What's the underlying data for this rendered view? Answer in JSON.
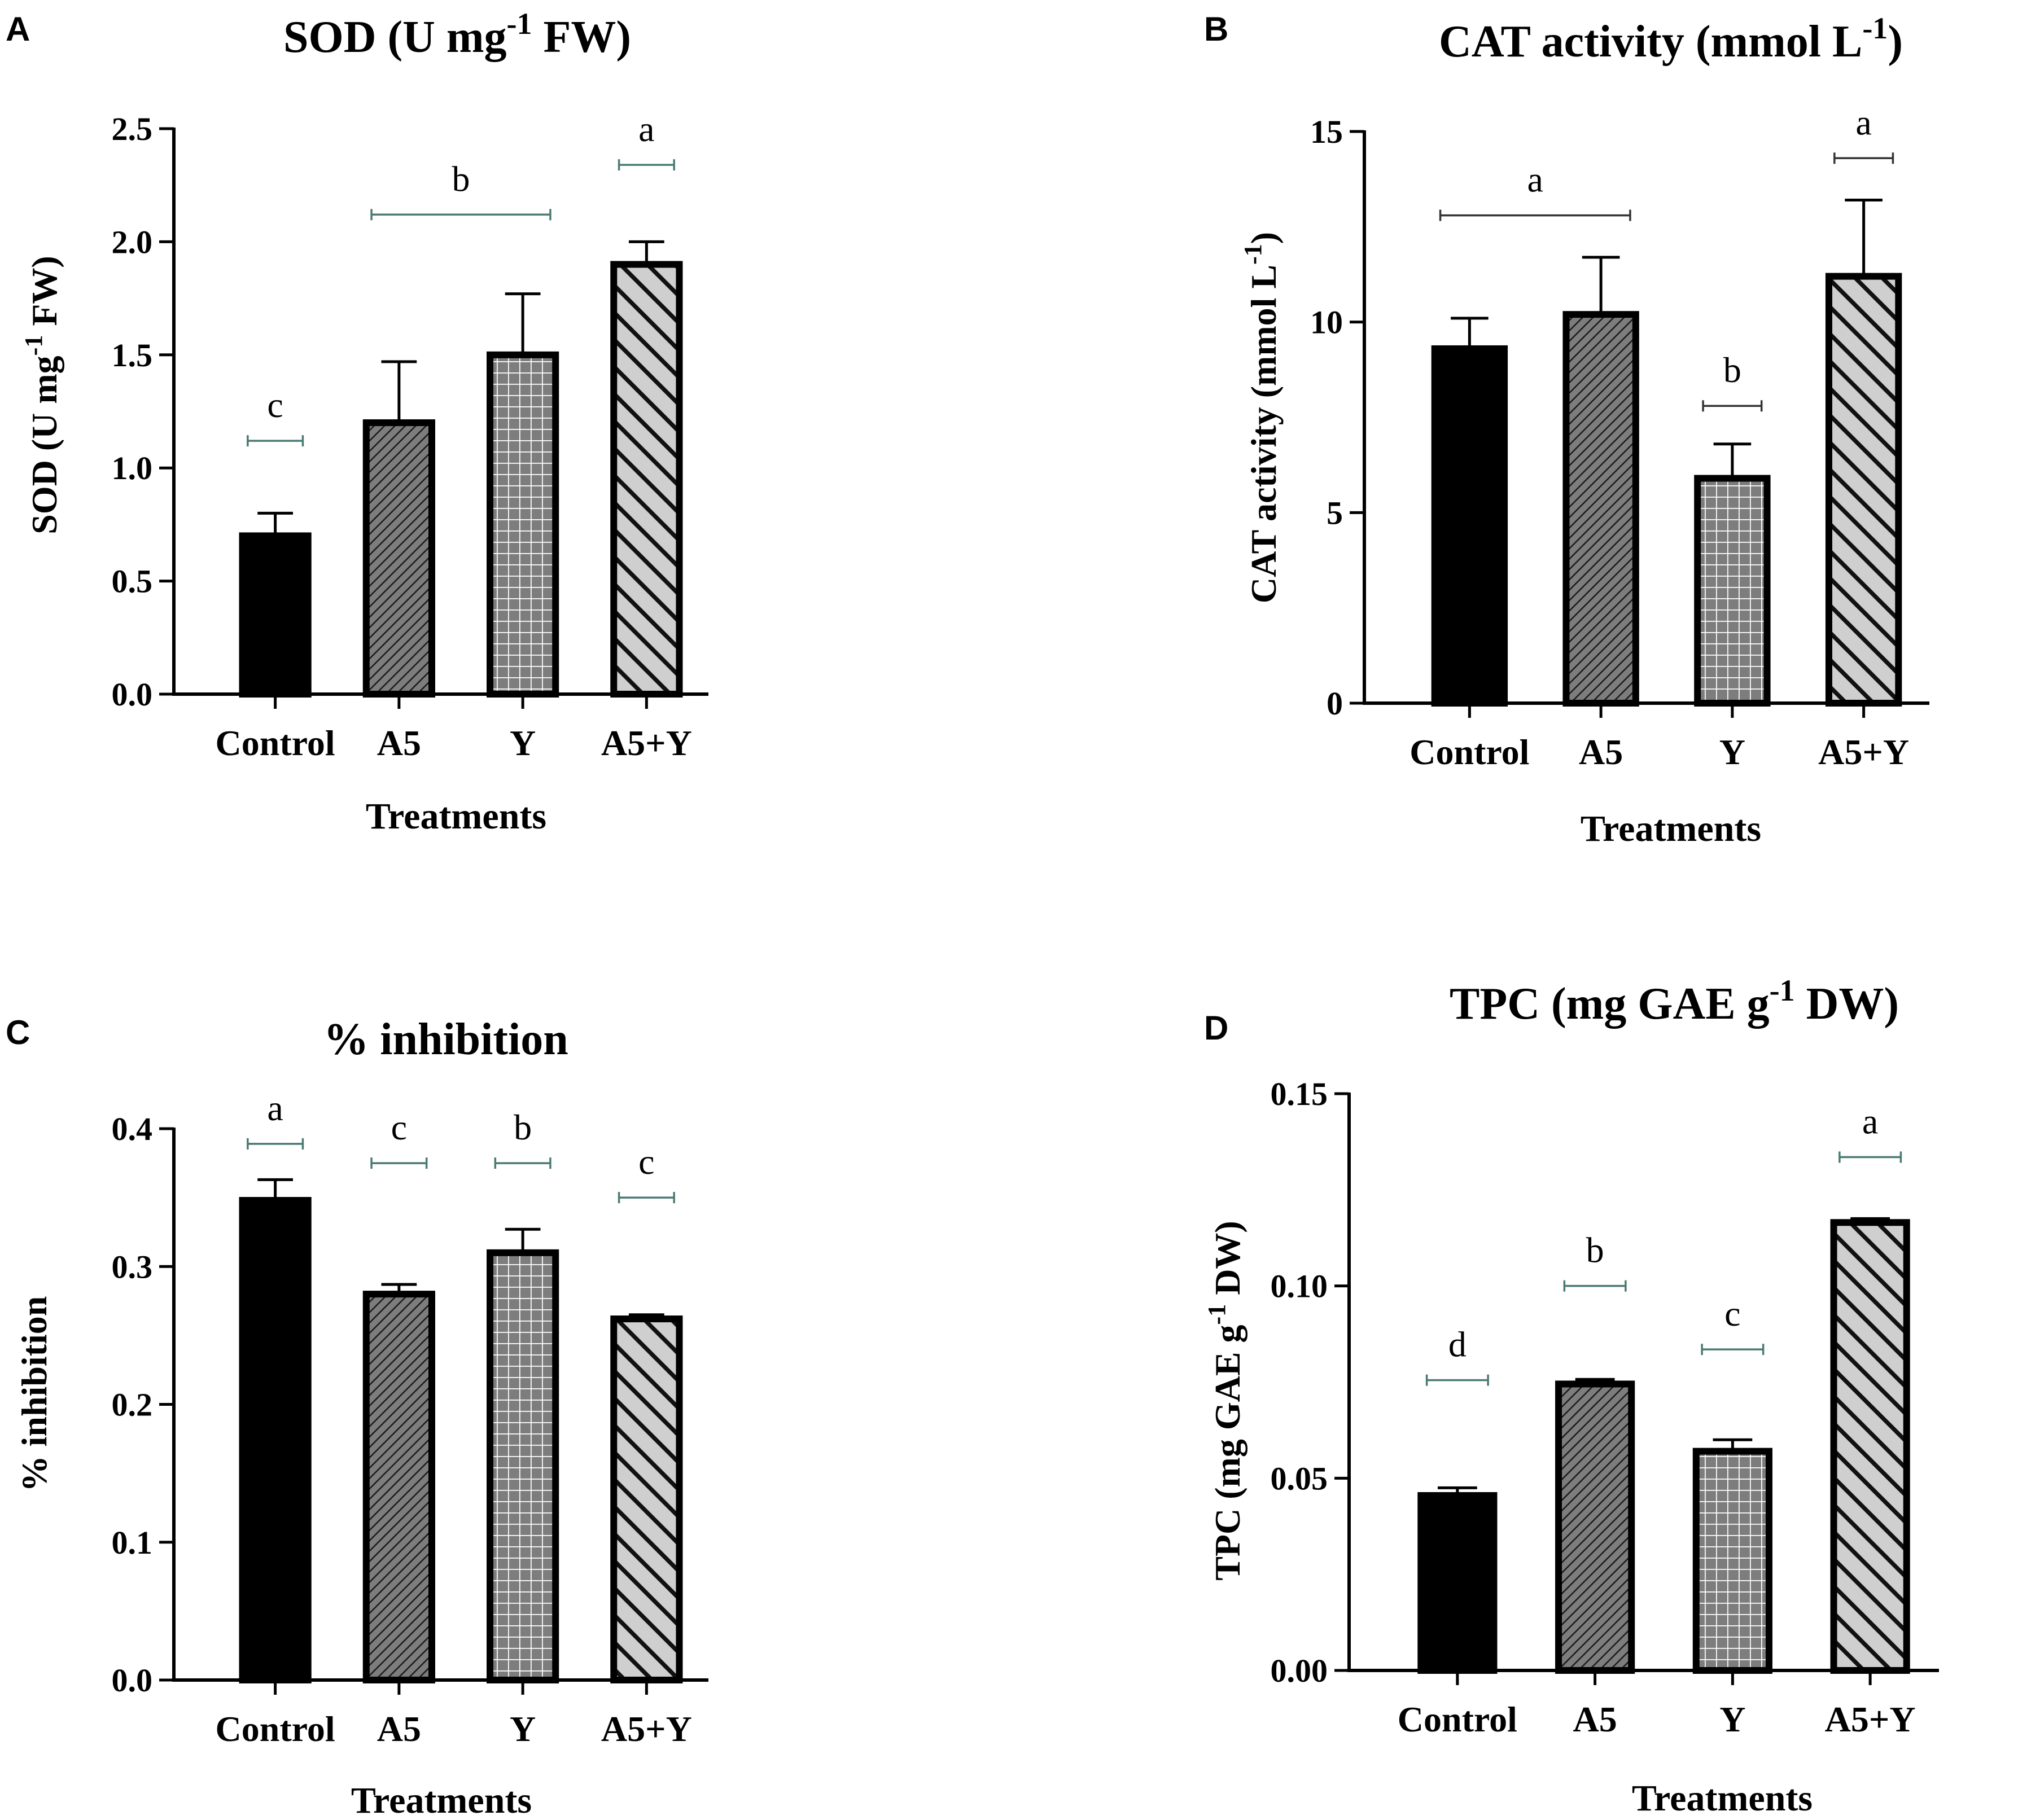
{
  "chart_data": [
    {
      "id": "A",
      "panel_label": "A",
      "type": "bar",
      "title": "SOD  (U mg",
      "title_sup": "-1",
      "title_tail": " FW)",
      "ylabel": "SOD  (U mg",
      "ylabel_sup": "-1",
      "ylabel_tail": " FW)",
      "xlabel": "Treatments",
      "categories": [
        "Control",
        "A5",
        "Y",
        "A5+Y"
      ],
      "values": [
        0.7,
        1.2,
        1.5,
        1.9
      ],
      "errors": [
        0.1,
        0.27,
        0.27,
        0.1
      ],
      "patterns": [
        "solid",
        "diag-dense",
        "grid",
        "diag-wide"
      ],
      "ylim": [
        0,
        2.5
      ],
      "yticks": [
        0.0,
        0.5,
        1.0,
        1.5,
        2.0,
        2.5
      ],
      "ytick_labels": [
        "0.0",
        "0.5",
        "1.0",
        "1.5",
        "2.0",
        "2.5"
      ],
      "significance": [
        {
          "letter": "c",
          "from": 0,
          "to": 0,
          "y": 1.12,
          "color": "#4a7a72"
        },
        {
          "letter": "b",
          "from": 1,
          "to": 2,
          "y": 2.12,
          "color": "#4a7a72"
        },
        {
          "letter": "a",
          "from": 3,
          "to": 3,
          "y": 2.34,
          "color": "#4a7a72"
        }
      ]
    },
    {
      "id": "B",
      "panel_label": "B",
      "type": "bar",
      "title": "CAT activity (mmol L",
      "title_sup": "-1",
      "title_tail": ")",
      "ylabel": "CAT activity (mmol L",
      "ylabel_sup": "-1",
      "ylabel_tail": ")",
      "xlabel": "Treatments",
      "categories": [
        "Control",
        "A5",
        "Y",
        "A5+Y"
      ],
      "values": [
        9.3,
        10.2,
        5.9,
        11.2
      ],
      "errors": [
        0.8,
        1.5,
        0.9,
        2.0
      ],
      "patterns": [
        "solid",
        "diag-dense",
        "grid",
        "diag-wide"
      ],
      "ylim": [
        0,
        15
      ],
      "yticks": [
        0,
        5,
        10,
        15
      ],
      "ytick_labels": [
        "0",
        "5",
        "10",
        "15"
      ],
      "significance": [
        {
          "letter": "a",
          "from": 0,
          "to": 1,
          "y": 12.8,
          "color": "#333333"
        },
        {
          "letter": "b",
          "from": 2,
          "to": 2,
          "y": 7.8,
          "color": "#333333"
        },
        {
          "letter": "a",
          "from": 3,
          "to": 3,
          "y": 14.3,
          "color": "#333333"
        }
      ]
    },
    {
      "id": "C",
      "panel_label": "C",
      "type": "bar",
      "title": "% inhibition",
      "title_sup": "",
      "title_tail": "",
      "ylabel": "% inhibition",
      "ylabel_sup": "",
      "ylabel_tail": "",
      "xlabel": "Treatments",
      "categories": [
        "Control",
        "A5",
        "Y",
        "A5+Y"
      ],
      "values": [
        0.348,
        0.28,
        0.31,
        0.262
      ],
      "errors": [
        0.015,
        0.007,
        0.017,
        0.003
      ],
      "patterns": [
        "solid",
        "diag-dense",
        "grid",
        "diag-wide"
      ],
      "ylim": [
        0,
        0.4
      ],
      "yticks": [
        0.0,
        0.1,
        0.2,
        0.3,
        0.4
      ],
      "ytick_labels": [
        "0.0",
        "0.1",
        "0.2",
        "0.3",
        "0.4"
      ],
      "significance": [
        {
          "letter": "a",
          "from": 0,
          "to": 0,
          "y": 0.389,
          "color": "#4a7a72"
        },
        {
          "letter": "c",
          "from": 1,
          "to": 1,
          "y": 0.375,
          "color": "#4a7a72"
        },
        {
          "letter": "b",
          "from": 2,
          "to": 2,
          "y": 0.375,
          "color": "#4a7a72"
        },
        {
          "letter": "c",
          "from": 3,
          "to": 3,
          "y": 0.35,
          "color": "#4a7a72"
        }
      ]
    },
    {
      "id": "D",
      "panel_label": "D",
      "type": "bar",
      "title": "TPC (mg GAE g",
      "title_sup": "-1",
      "title_tail": " DW)",
      "ylabel": "TPC (mg GAE g",
      "ylabel_sup": "-1",
      "ylabel_tail": " DW)",
      "xlabel": "Treatments",
      "categories": [
        "Control",
        "A5",
        "Y",
        "A5+Y"
      ],
      "values": [
        0.0455,
        0.0745,
        0.057,
        0.1165
      ],
      "errors": [
        0.002,
        0.0012,
        0.003,
        0.001
      ],
      "patterns": [
        "solid",
        "diag-dense",
        "grid",
        "diag-wide"
      ],
      "ylim": [
        0,
        0.15
      ],
      "yticks": [
        0.0,
        0.05,
        0.1,
        0.15
      ],
      "ytick_labels": [
        "0.00",
        "0.05",
        "0.10",
        "0.15"
      ],
      "significance": [
        {
          "letter": "d",
          "from": 0,
          "to": 0,
          "y": 0.0755,
          "color": "#4a7a72"
        },
        {
          "letter": "b",
          "from": 1,
          "to": 1,
          "y": 0.1,
          "color": "#4a7a72"
        },
        {
          "letter": "c",
          "from": 2,
          "to": 2,
          "y": 0.0835,
          "color": "#4a7a72"
        },
        {
          "letter": "a",
          "from": 3,
          "to": 3,
          "y": 0.1335,
          "color": "#4a7a72"
        }
      ]
    }
  ]
}
